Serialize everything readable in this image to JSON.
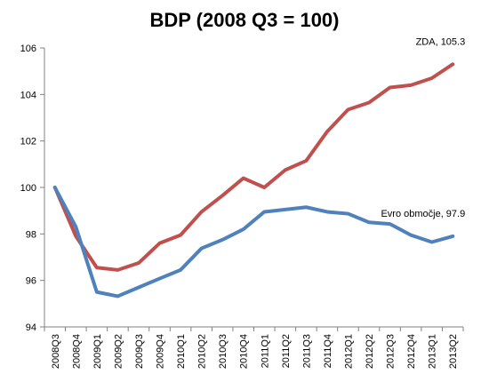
{
  "chart_data": {
    "type": "line",
    "title": "BDP (2008 Q3 = 100)",
    "xlabel": "",
    "ylabel": "",
    "ylim": [
      94,
      106
    ],
    "yticks": [
      94,
      96,
      98,
      100,
      102,
      104,
      106
    ],
    "grid": false,
    "categories": [
      "2008Q3",
      "2008Q4",
      "2009Q1",
      "2009Q2",
      "2009Q3",
      "2009Q4",
      "2010Q1",
      "2010Q2",
      "2010Q3",
      "2010Q4",
      "2011Q1",
      "2011Q2",
      "2011Q3",
      "2011Q4",
      "2012Q1",
      "2012Q2",
      "2012Q3",
      "2012Q4",
      "2013Q1",
      "2013Q2"
    ],
    "series": [
      {
        "color": "#c0504d",
        "values": [
          100,
          97.9,
          96.55,
          96.45,
          96.75,
          97.6,
          97.95,
          98.95,
          99.65,
          100.4,
          100.0,
          100.75,
          101.15,
          102.4,
          103.35,
          103.65,
          104.3,
          104.4,
          104.7,
          105.3
        ]
      },
      {
        "color": "#4f81bd",
        "values": [
          100,
          98.3,
          95.5,
          95.32,
          95.7,
          96.08,
          96.45,
          97.38,
          97.75,
          98.2,
          98.95,
          99.05,
          99.15,
          98.95,
          98.87,
          98.5,
          98.43,
          97.95,
          97.65,
          97.9
        ]
      }
    ],
    "annotations": [
      {
        "text": "ZDA, 105.3",
        "series": 0
      },
      {
        "text": "Evro območje, 97.9",
        "series": 1
      }
    ]
  }
}
